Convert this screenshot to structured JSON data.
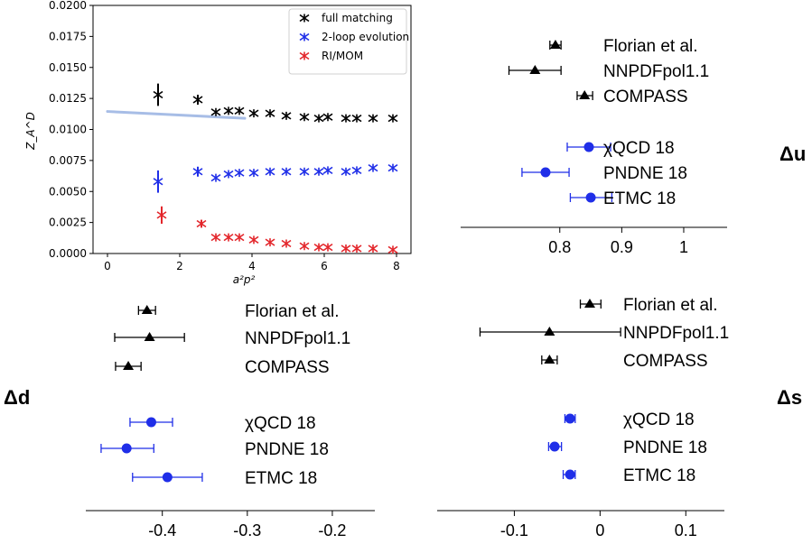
{
  "colors": {
    "black": "#000000",
    "blue": "#1f2ee8",
    "red": "#e3262b",
    "fit": "#a7bde6"
  },
  "chart_data": [
    {
      "type": "scatter",
      "title": "",
      "xlabel": "a²p²",
      "ylabel": "Z_A^D",
      "xlim": [
        -0.4,
        8.4
      ],
      "ylim": [
        0.0,
        0.02
      ],
      "xticks": [
        "0",
        "2",
        "4",
        "6",
        "8"
      ],
      "yticks": [
        "0.0000",
        "0.0025",
        "0.0050",
        "0.0075",
        "0.0100",
        "0.0125",
        "0.0150",
        "0.0175",
        "0.0200"
      ],
      "legend": {
        "placement": "top-right",
        "entries": [
          "full matching",
          "2-loop evolution",
          "RI/MOM"
        ]
      },
      "fit_line": {
        "x": [
          0,
          3.8
        ],
        "y": [
          0.01145,
          0.0109
        ]
      },
      "series": [
        {
          "name": "full matching",
          "color": "black",
          "x": [
            1.4,
            2.5,
            3.0,
            3.35,
            3.65,
            4.05,
            4.5,
            4.95,
            5.45,
            5.85,
            6.1,
            6.6,
            6.9,
            7.35,
            7.9
          ],
          "y": [
            0.0128,
            0.0124,
            0.0114,
            0.0115,
            0.0115,
            0.0113,
            0.0113,
            0.0111,
            0.011,
            0.0109,
            0.011,
            0.0109,
            0.0109,
            0.0109,
            0.0109
          ],
          "yerr": [
            0.0009,
            0.0004,
            0,
            0,
            0,
            0,
            0,
            0,
            0,
            0,
            0,
            0,
            0,
            0,
            0
          ]
        },
        {
          "name": "2-loop evolution",
          "color": "blue",
          "x": [
            1.4,
            2.5,
            3.0,
            3.35,
            3.65,
            4.05,
            4.5,
            4.95,
            5.45,
            5.85,
            6.1,
            6.6,
            6.9,
            7.35,
            7.9
          ],
          "y": [
            0.0058,
            0.0066,
            0.0061,
            0.0064,
            0.0065,
            0.0065,
            0.0066,
            0.0066,
            0.0066,
            0.0066,
            0.0067,
            0.0066,
            0.0067,
            0.0069,
            0.0069
          ],
          "yerr": [
            0.0009,
            0.0004,
            0,
            0,
            0,
            0,
            0,
            0,
            0,
            0,
            0,
            0,
            0,
            0,
            0
          ]
        },
        {
          "name": "RI/MOM",
          "color": "red",
          "x": [
            1.5,
            2.6,
            3.0,
            3.35,
            3.65,
            4.05,
            4.5,
            4.95,
            5.45,
            5.85,
            6.1,
            6.6,
            6.9,
            7.35,
            7.9
          ],
          "y": [
            0.0031,
            0.0024,
            0.0013,
            0.0013,
            0.0013,
            0.0011,
            0.0009,
            0.0008,
            0.0006,
            0.0005,
            0.0005,
            0.0004,
            0.0004,
            0.0004,
            0.0003
          ],
          "yerr": [
            0.0007,
            0.0003,
            0,
            0,
            0,
            0,
            0,
            0,
            0,
            0,
            0,
            0,
            0,
            0,
            0
          ]
        }
      ]
    },
    {
      "type": "forest",
      "title": "Δu",
      "xlim": [
        0.64,
        1.07
      ],
      "xticks": [
        "0.8",
        "0.9",
        "1"
      ],
      "entries": [
        {
          "label": "Florian et al.",
          "value": 0.793,
          "lo": 0.784,
          "hi": 0.802,
          "marker": "triangle",
          "color": "black"
        },
        {
          "label": "NNPDFpol1.1",
          "value": 0.76,
          "lo": 0.718,
          "hi": 0.802,
          "marker": "triangle",
          "color": "black"
        },
        {
          "label": "COMPASS",
          "value": 0.84,
          "lo": 0.828,
          "hi": 0.853,
          "marker": "triangle",
          "color": "black"
        },
        {
          "label": "χQCD 18",
          "value": 0.847,
          "lo": 0.812,
          "hi": 0.882,
          "marker": "circle",
          "color": "blue"
        },
        {
          "label": "PNDNE 18",
          "value": 0.777,
          "lo": 0.739,
          "hi": 0.815,
          "marker": "circle",
          "color": "blue"
        },
        {
          "label": "ETMC 18",
          "value": 0.85,
          "lo": 0.817,
          "hi": 0.884,
          "marker": "circle",
          "color": "blue"
        }
      ]
    },
    {
      "type": "forest",
      "title": "Δd",
      "xlim": [
        -0.49,
        -0.15
      ],
      "xticks": [
        "-0.4",
        "-0.3",
        "-0.2"
      ],
      "entries": [
        {
          "label": "Florian et al.",
          "value": -0.418,
          "lo": -0.428,
          "hi": -0.408,
          "marker": "triangle",
          "color": "black"
        },
        {
          "label": "NNPDFpol1.1",
          "value": -0.415,
          "lo": -0.456,
          "hi": -0.374,
          "marker": "triangle",
          "color": "black"
        },
        {
          "label": "COMPASS",
          "value": -0.44,
          "lo": -0.455,
          "hi": -0.425,
          "marker": "triangle",
          "color": "black"
        },
        {
          "label": "χQCD 18",
          "value": -0.413,
          "lo": -0.438,
          "hi": -0.388,
          "marker": "circle",
          "color": "blue"
        },
        {
          "label": "PNDNE 18",
          "value": -0.442,
          "lo": -0.472,
          "hi": -0.41,
          "marker": "circle",
          "color": "blue"
        },
        {
          "label": "ETMC 18",
          "value": -0.394,
          "lo": -0.435,
          "hi": -0.353,
          "marker": "circle",
          "color": "blue"
        }
      ]
    },
    {
      "type": "forest",
      "title": "Δs",
      "xlim": [
        -0.19,
        0.145
      ],
      "xticks": [
        "-0.1",
        "0",
        "0.1"
      ],
      "entries": [
        {
          "label": "Florian et al.",
          "value": -0.012,
          "lo": -0.023,
          "hi": 0.001,
          "marker": "triangle",
          "color": "black"
        },
        {
          "label": "NNPDFpol1.1",
          "value": -0.059,
          "lo": -0.14,
          "hi": 0.024,
          "marker": "triangle",
          "color": "black"
        },
        {
          "label": "COMPASS",
          "value": -0.059,
          "lo": -0.068,
          "hi": -0.05,
          "marker": "triangle",
          "color": "black"
        },
        {
          "label": "χQCD 18",
          "value": -0.035,
          "lo": -0.041,
          "hi": -0.029,
          "marker": "circle",
          "color": "blue"
        },
        {
          "label": "PNDNE 18",
          "value": -0.053,
          "lo": -0.06,
          "hi": -0.045,
          "marker": "circle",
          "color": "blue"
        },
        {
          "label": "ETMC 18",
          "value": -0.035,
          "lo": -0.043,
          "hi": -0.029,
          "marker": "circle",
          "color": "blue"
        }
      ]
    }
  ]
}
